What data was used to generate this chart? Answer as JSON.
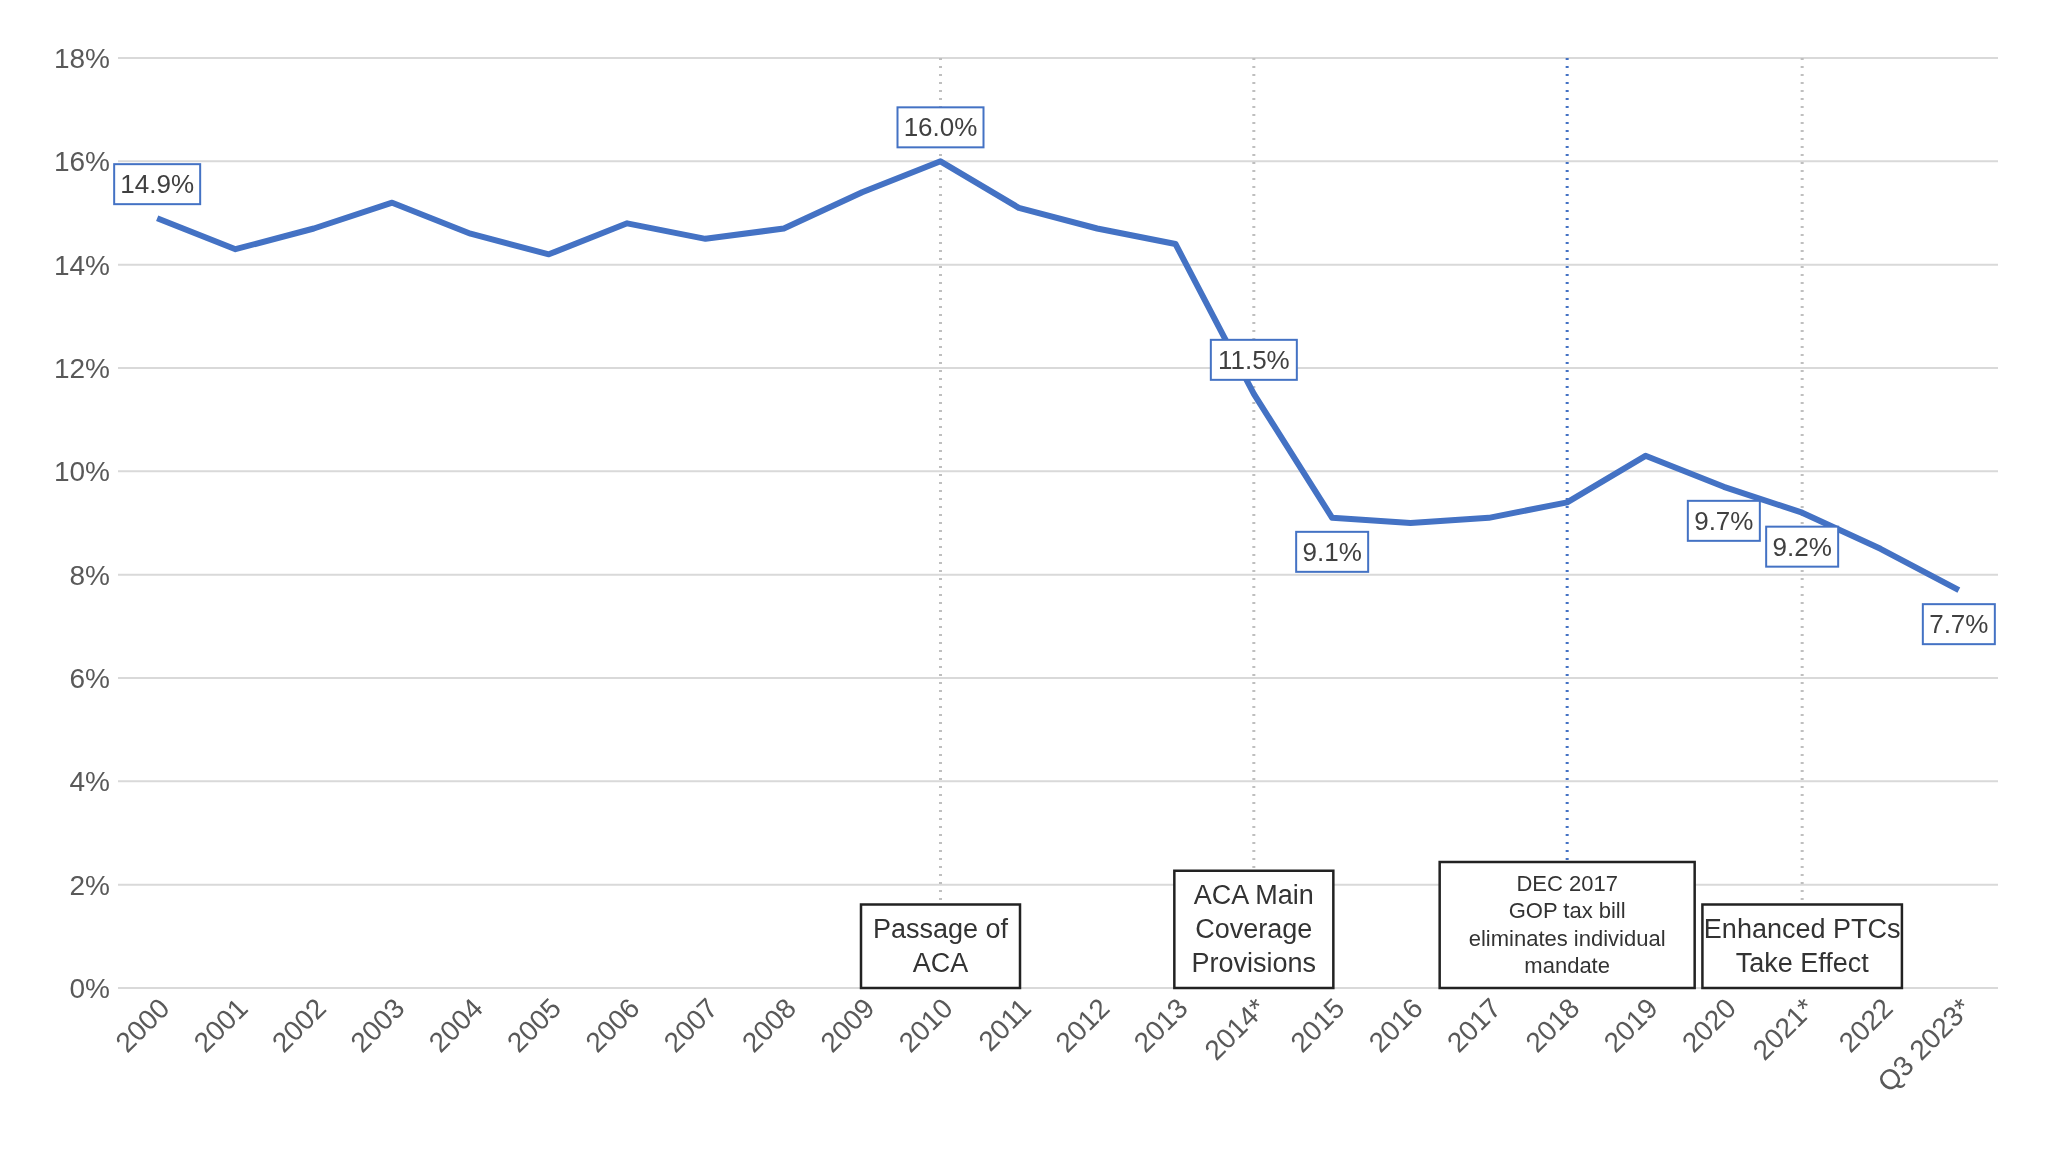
{
  "chart_data": {
    "type": "line",
    "categories": [
      "2000",
      "2001",
      "2002",
      "2003",
      "2004",
      "2005",
      "2006",
      "2007",
      "2008",
      "2009",
      "2010",
      "2011",
      "2012",
      "2013",
      "2014*",
      "2015",
      "2016",
      "2017",
      "2018",
      "2019",
      "2020",
      "2021*",
      "2022",
      "Q3 2023*"
    ],
    "series": [
      {
        "color": "#4472c4",
        "values": [
          14.9,
          14.3,
          14.7,
          15.2,
          14.6,
          14.2,
          14.8,
          14.5,
          14.7,
          15.4,
          16.0,
          15.1,
          14.7,
          14.4,
          11.5,
          9.1,
          9.0,
          9.1,
          9.4,
          10.3,
          9.7,
          9.2,
          8.5,
          7.7
        ],
        "value_labels": [
          "14.9%",
          null,
          null,
          null,
          null,
          null,
          null,
          null,
          null,
          null,
          "16.0%",
          null,
          null,
          null,
          "11.5%",
          "9.1%",
          null,
          null,
          null,
          null,
          "9.7%",
          "9.2%",
          null,
          "7.7%"
        ]
      }
    ],
    "ylim": [
      0,
      18
    ],
    "yticks": [
      {
        "value": 0,
        "label": "0%"
      },
      {
        "value": 2,
        "label": "2%"
      },
      {
        "value": 4,
        "label": "4%"
      },
      {
        "value": 6,
        "label": "6%"
      },
      {
        "value": 8,
        "label": "8%"
      },
      {
        "value": 10,
        "label": "10%"
      },
      {
        "value": 12,
        "label": "12%"
      },
      {
        "value": 14,
        "label": "14%"
      },
      {
        "value": 16,
        "label": "16%"
      },
      {
        "value": 18,
        "label": "18%"
      }
    ],
    "grid": "y",
    "legend": false,
    "marker": "none",
    "line_style": "solid",
    "ref_lines": [
      {
        "axis": "x",
        "value": "2010",
        "label": "Passage of\nACA",
        "color": "#bfbfbf",
        "line_style": "dotted"
      },
      {
        "axis": "x",
        "value": "2014*",
        "label": "ACA Main\nCoverage\nProvisions",
        "color": "#bfbfbf",
        "line_style": "dotted"
      },
      {
        "axis": "x",
        "value": "2018",
        "label": "DEC 2017\nGOP tax bill\neliminates individual\nmandate",
        "color": "#4472c4",
        "line_style": "dotted"
      },
      {
        "axis": "x",
        "value": "2021*",
        "label": "Enhanced PTCs\nTake Effect",
        "color": "#bfbfbf",
        "line_style": "dotted"
      }
    ]
  }
}
